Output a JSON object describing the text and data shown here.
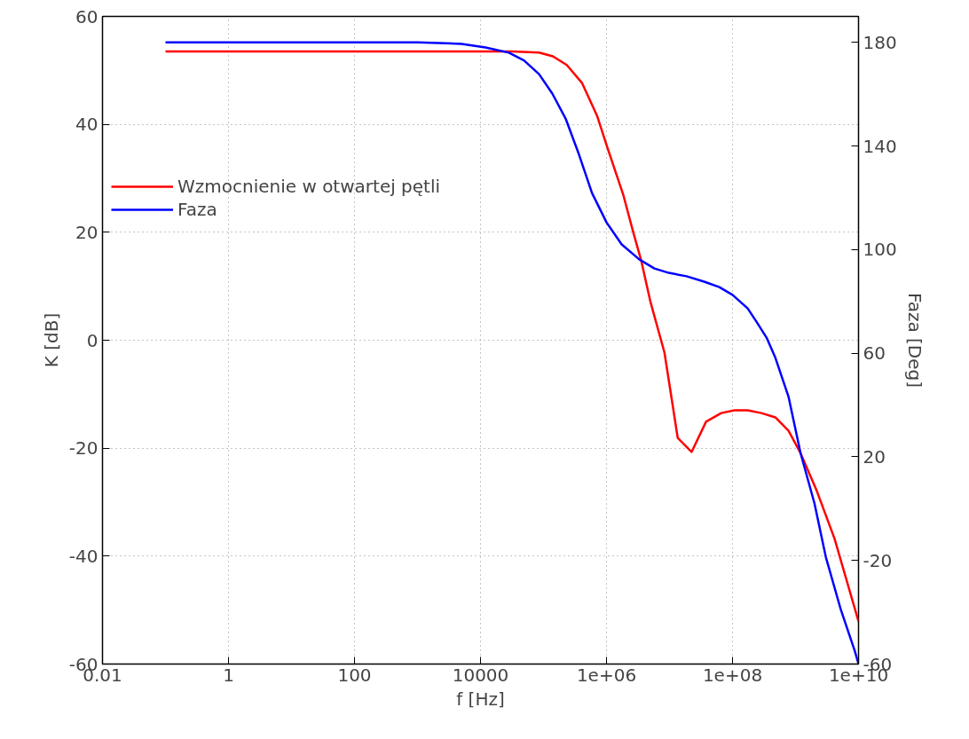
{
  "chart_data": {
    "type": "line",
    "xlabel": "f [Hz]",
    "ylabel": "K [dB]",
    "y2label": "Faza [Deg]",
    "log": "x",
    "xlim": [
      0.01,
      10000000000
    ],
    "xticks": [
      {
        "value": 0.01,
        "label": "0.01"
      },
      1,
      100,
      10000,
      {
        "value": 1000000,
        "label": "1e+06"
      },
      {
        "value": 100000000,
        "label": "1e+08"
      },
      {
        "value": 10000000000,
        "label": "1e+10"
      }
    ],
    "ylim": [
      -60,
      60
    ],
    "yticks": [
      -60,
      -40,
      -20,
      0,
      20,
      40,
      60
    ],
    "y2lim": [
      -60,
      190
    ],
    "y2ticks": [
      -60,
      -20,
      20,
      60,
      100,
      140,
      180
    ],
    "grid": true,
    "legend": "top left",
    "line_style": "solid",
    "marker": "none",
    "series": [
      {
        "name": "Wzmocnienie w otwartej pętli",
        "color": "#ff0000",
        "x": [
          0.1,
          10000.0,
          31600.0,
          85000.0,
          141000.0,
          234000.0,
          407000.0,
          708000.0,
          1000000.0,
          1860000.0,
          2630000.0,
          3550000.0,
          5010000.0,
          8320000.0,
          13500000.0,
          22400000.0,
          38000000.0,
          66100000.0,
          107000000.0,
          174000000.0,
          288000000.0,
          479000000.0,
          776000000.0,
          1200000000.0,
          2190000000.0,
          4170000000.0,
          10000000000.0
        ],
        "values": [
          53.5,
          53.5,
          53.5,
          53.3,
          52.6,
          51,
          47.7,
          41.6,
          36.2,
          26.8,
          20.2,
          14.8,
          7,
          -2.3,
          -18.1,
          -20.7,
          -15.1,
          -13.5,
          -13,
          -13,
          -13.5,
          -14.3,
          -16.8,
          -20.9,
          -28,
          -36.8,
          -52.1
        ]
      },
      {
        "name": "Faza",
        "color": "#0000ff",
        "axis": "y2",
        "x": [
          0.1,
          1000.0,
          5010.0,
          12000.0,
          28200.0,
          49000.0,
          85100.0,
          138000.0,
          224000.0,
          363000.0,
          589000.0,
          1000000.0,
          1740000.0,
          3310000.0,
          5750000.0,
          9770000.0,
          18600000.0,
          35500000.0,
          61700000.0,
          100000000.0,
          174000000.0,
          245000000.0,
          347000000.0,
          479000000.0,
          776000000.0,
          1200000000.0,
          2000000000.0,
          3020000000.0,
          5250000000.0,
          8710000000.0,
          10000000000.0
        ],
        "values": [
          180,
          180,
          179.4,
          178,
          176,
          173,
          167.7,
          160.2,
          150.6,
          136.9,
          121.8,
          110.5,
          102,
          96.2,
          92.7,
          91,
          89.7,
          87.6,
          85.5,
          82.5,
          77.3,
          71.8,
          66,
          58.2,
          43.1,
          21.5,
          2,
          -18.6,
          -39.1,
          -54.9,
          -60
        ]
      }
    ]
  }
}
